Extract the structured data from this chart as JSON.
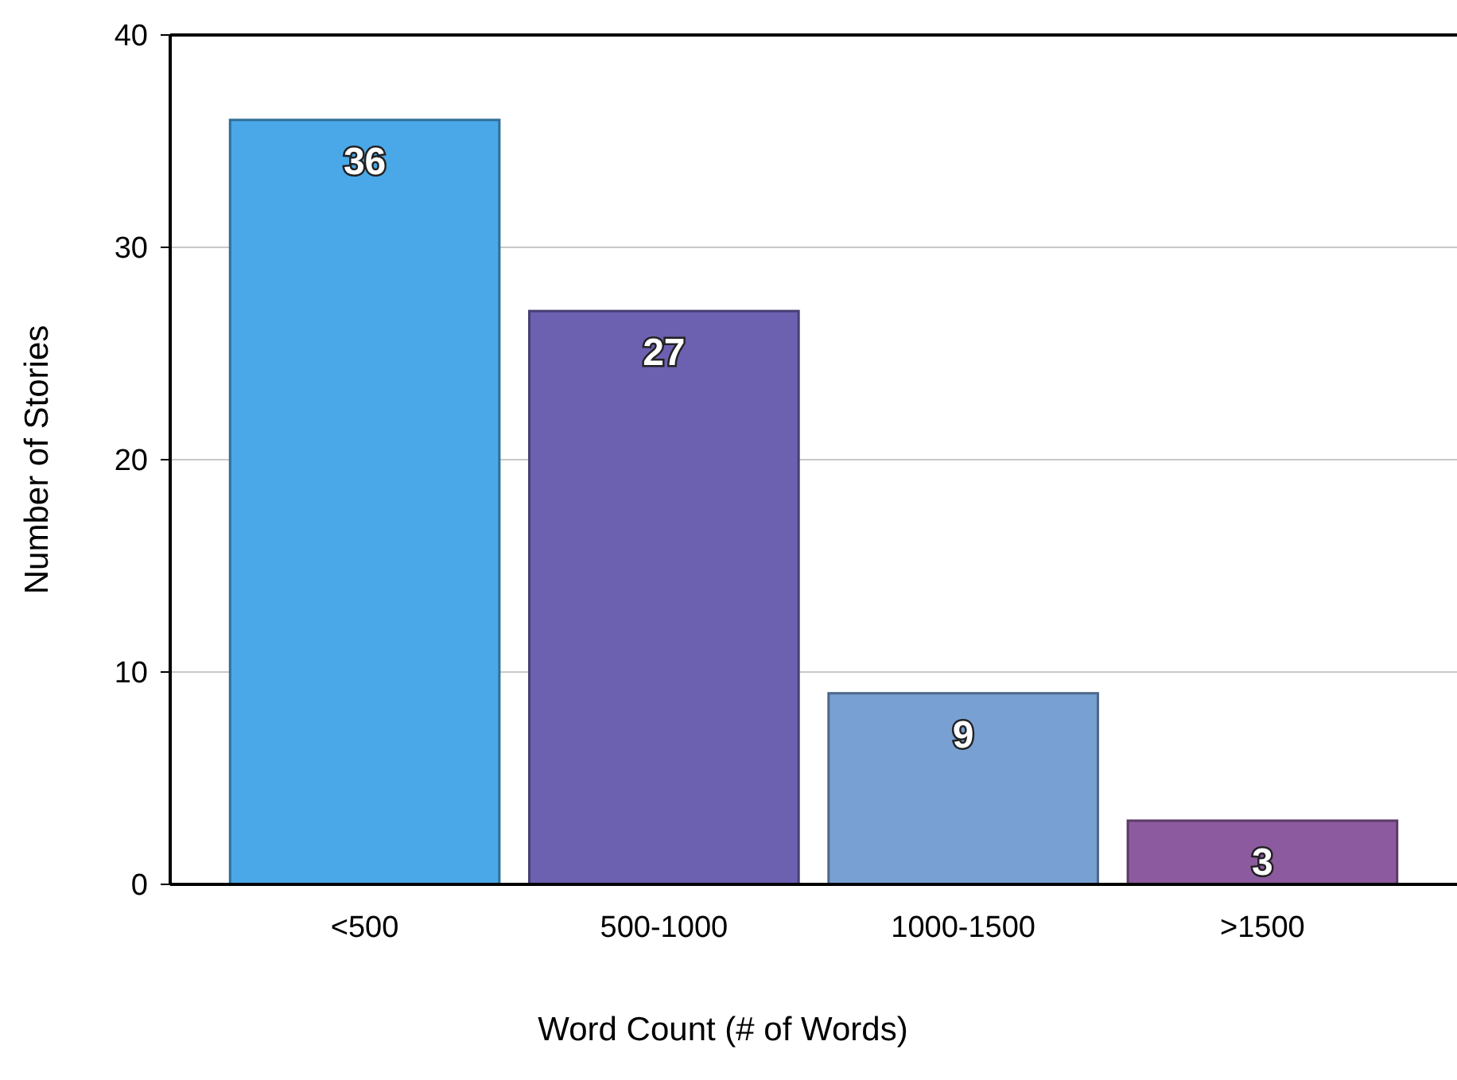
{
  "chart_data": {
    "type": "bar",
    "xlabel": "Word Count (# of Words)",
    "ylabel": "Number of Stories",
    "categories": [
      "<500",
      "500-1000",
      "1000-1500",
      ">1500"
    ],
    "values": [
      36,
      27,
      9,
      3
    ],
    "colors": [
      "#4aa8e8",
      "#6c60b0",
      "#78a0d2",
      "#8c5a9e"
    ],
    "ylim": [
      0,
      40
    ],
    "yticks": [
      0,
      10,
      20,
      30,
      40
    ],
    "grid": "y",
    "data_labels": true
  }
}
